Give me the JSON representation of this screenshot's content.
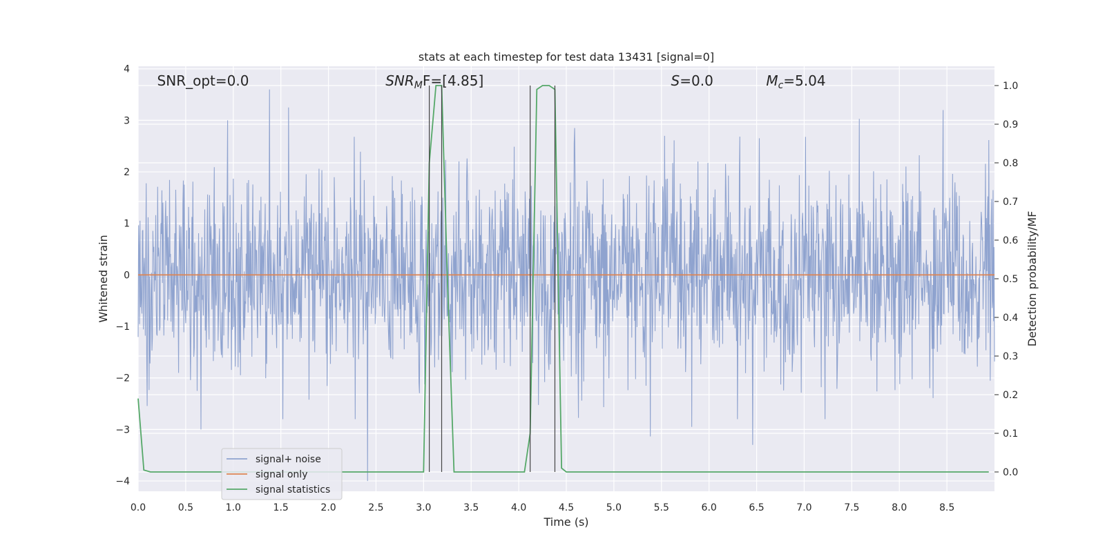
{
  "chart_data": {
    "type": "line",
    "title": "stats at each timestep for test data 13431 [signal=0]",
    "xlabel": "Time (s)",
    "ylabel": "Whitened strain",
    "ylabel_right": "Detection probability/MF",
    "xlim": [
      0,
      9
    ],
    "ylim": [
      -4.2,
      4.05
    ],
    "ylim_right": [
      -0.05,
      1.05
    ],
    "x_ticks": [
      0.0,
      0.5,
      1.0,
      1.5,
      2.0,
      2.5,
      3.0,
      3.5,
      4.0,
      4.5,
      5.0,
      5.5,
      6.0,
      6.5,
      7.0,
      7.5,
      8.0,
      8.5
    ],
    "x_tick_labels": [
      "0.0",
      "0.5",
      "1.0",
      "1.5",
      "2.0",
      "2.5",
      "3.0",
      "3.5",
      "4.0",
      "4.5",
      "5.0",
      "5.5",
      "6.0",
      "6.5",
      "7.0",
      "7.5",
      "8.0",
      "8.5"
    ],
    "y_ticks": [
      -4,
      -3,
      -2,
      -1,
      0,
      1,
      2,
      3,
      4
    ],
    "y_tick_labels": [
      "−4",
      "−3",
      "−2",
      "−1",
      "0",
      "1",
      "2",
      "3",
      "4"
    ],
    "y_ticks_right": [
      0.0,
      0.1,
      0.2,
      0.3,
      0.4,
      0.5,
      0.6,
      0.7,
      0.8,
      0.9,
      1.0
    ],
    "y_tick_labels_right": [
      "0.0",
      "0.1",
      "0.2",
      "0.3",
      "0.4",
      "0.5",
      "0.6",
      "0.7",
      "0.8",
      "0.9",
      "1.0"
    ],
    "grid": true,
    "legend_position": "lower-left",
    "annotations": [
      {
        "prefix": "SNR_opt=",
        "sub": "",
        "suffix": "0.0",
        "x": 0.2
      },
      {
        "prefix": "SNR",
        "sub": "M",
        "suffix": "F=[4.85]",
        "x": 2.6
      },
      {
        "prefix": "S",
        "sub": "",
        "suffix": "=0.0",
        "x": 5.6
      },
      {
        "prefix": "M",
        "sub": "c",
        "suffix": "=5.04",
        "x": 6.6
      }
    ],
    "vertical_lines_x": [
      3.06,
      3.19,
      4.12,
      4.38
    ],
    "series": [
      {
        "name": "signal+ noise",
        "color": "#8fa3cf",
        "axis": "left",
        "noise": {
          "t_start": 0.0,
          "t_end": 9.0,
          "num_samples": 1800,
          "seed": 13431
        },
        "peaks": [
          {
            "x": 0.94,
            "y": 3.0
          },
          {
            "x": 1.38,
            "y": 3.6
          },
          {
            "x": 1.58,
            "y": 3.25
          },
          {
            "x": 2.41,
            "y": -4.0
          },
          {
            "x": 2.28,
            "y": -2.8
          },
          {
            "x": 0.66,
            "y": -3.0
          },
          {
            "x": 1.52,
            "y": -2.8
          },
          {
            "x": 6.46,
            "y": -3.3
          },
          {
            "x": 8.46,
            "y": 3.2
          },
          {
            "x": 5.82,
            "y": -2.95
          },
          {
            "x": 6.3,
            "y": -2.8
          },
          {
            "x": 7.22,
            "y": -2.8
          }
        ]
      },
      {
        "name": "signal only",
        "color": "#dd8452",
        "axis": "left",
        "x": [
          0.0,
          9.0
        ],
        "y": [
          0.0,
          0.0
        ]
      },
      {
        "name": "signal statistics",
        "color": "#55a868",
        "axis": "right",
        "x": [
          0.0,
          0.06,
          0.13,
          0.5,
          1.0,
          1.5,
          2.0,
          2.5,
          3.0,
          3.06,
          3.13,
          3.19,
          3.25,
          3.32,
          3.5,
          4.0,
          4.06,
          4.12,
          4.19,
          4.25,
          4.32,
          4.38,
          4.45,
          4.5,
          5.0,
          6.0,
          7.0,
          8.0,
          8.94
        ],
        "y": [
          0.19,
          0.005,
          0.0,
          0.0,
          0.0,
          0.0,
          0.0,
          0.0,
          0.0,
          0.8,
          1.0,
          1.0,
          0.5,
          0.0,
          0.0,
          0.0,
          0.0,
          0.1,
          0.99,
          1.0,
          1.0,
          0.99,
          0.01,
          0.0,
          0.0,
          0.0,
          0.0,
          0.0,
          0.0
        ]
      }
    ]
  }
}
